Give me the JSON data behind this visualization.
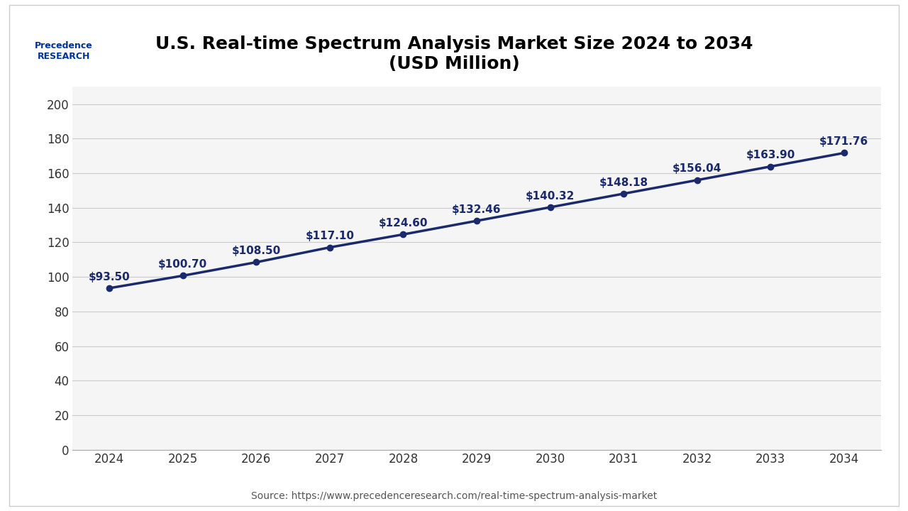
{
  "title_line1": "U.S. Real-time Spectrum Analysis Market Size 2024 to 2034",
  "title_line2": "(USD Million)",
  "years": [
    2024,
    2025,
    2026,
    2027,
    2028,
    2029,
    2030,
    2031,
    2032,
    2033,
    2034
  ],
  "values": [
    93.5,
    100.7,
    108.5,
    117.1,
    124.6,
    132.46,
    140.32,
    148.18,
    156.04,
    163.9,
    171.76
  ],
  "labels": [
    "$93.50",
    "$100.70",
    "$108.50",
    "$117.10",
    "$124.60",
    "$132.46",
    "$140.32",
    "$148.18",
    "$156.04",
    "$163.90",
    "$171.76"
  ],
  "line_color": "#1a2a6c",
  "marker_color": "#1a2a6c",
  "background_color": "#ffffff",
  "plot_bg_color": "#f5f5f5",
  "grid_color": "#cccccc",
  "title_color": "#000000",
  "label_color": "#1a2a6c",
  "tick_color": "#333333",
  "source_text": "Source: https://www.precedenceresearch.com/real-time-spectrum-analysis-market",
  "ylim": [
    0,
    210
  ],
  "yticks": [
    0,
    20,
    40,
    60,
    80,
    100,
    120,
    140,
    160,
    180,
    200
  ],
  "title_fontsize": 18,
  "label_fontsize": 11,
  "tick_fontsize": 12,
  "source_fontsize": 10,
  "line_width": 2.5,
  "marker_size": 6
}
